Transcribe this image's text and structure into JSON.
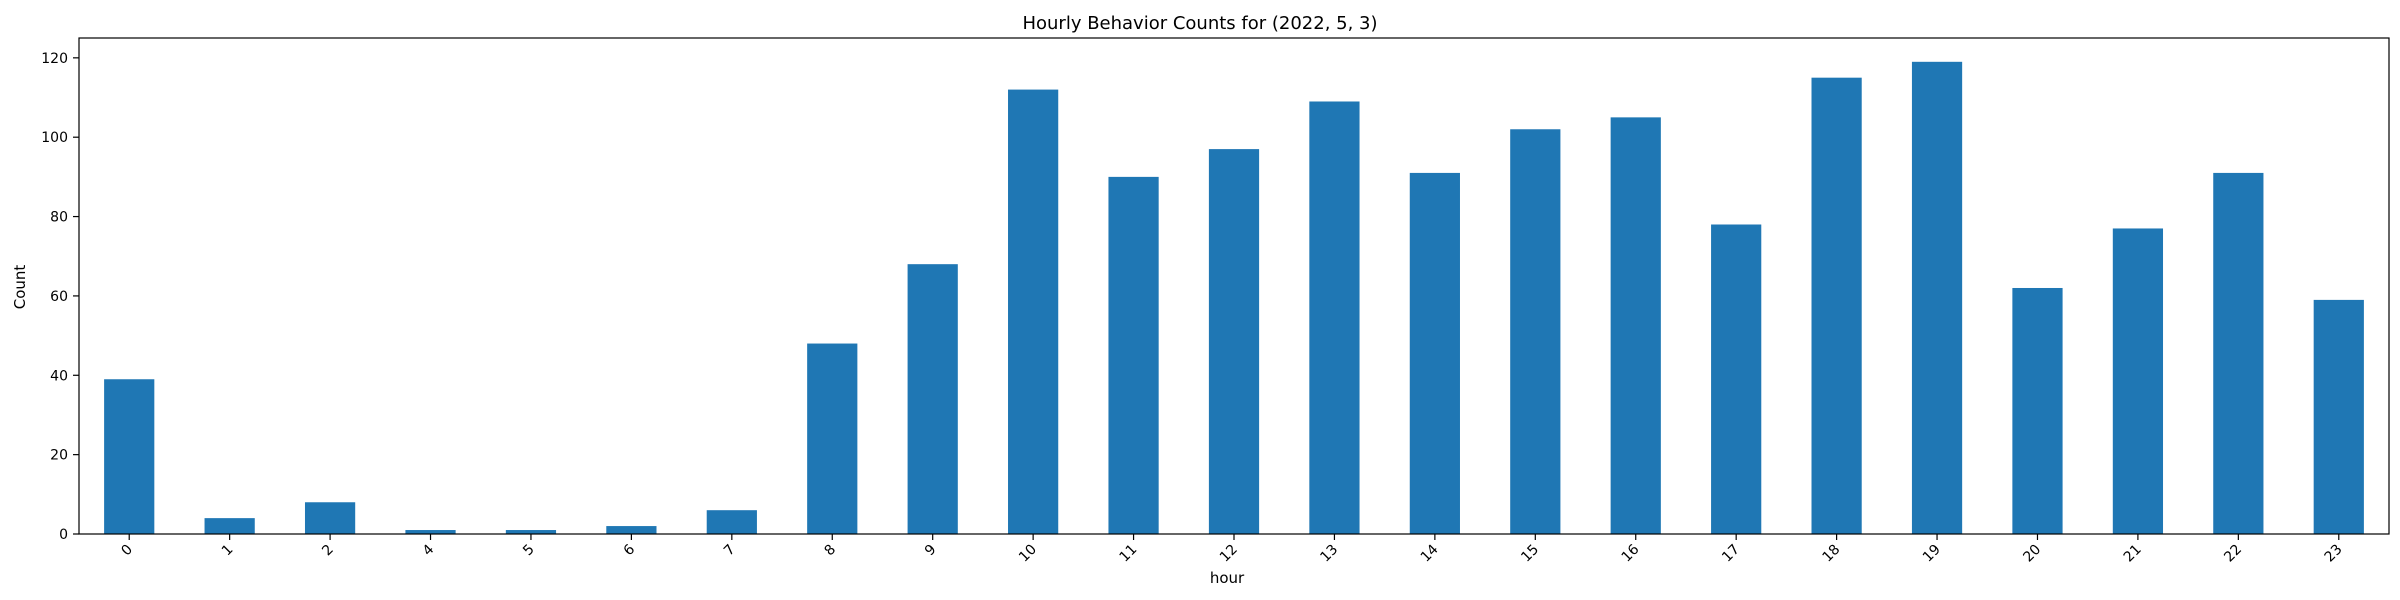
{
  "chart_data": {
    "type": "bar",
    "title": "Hourly Behavior Counts for (2022, 5, 3)",
    "xlabel": "hour",
    "ylabel": "Count",
    "categories": [
      "0",
      "1",
      "2",
      "4",
      "5",
      "6",
      "7",
      "8",
      "9",
      "10",
      "11",
      "12",
      "13",
      "14",
      "15",
      "16",
      "17",
      "18",
      "19",
      "20",
      "21",
      "22",
      "23"
    ],
    "values": [
      39,
      4,
      8,
      1,
      1,
      2,
      6,
      48,
      68,
      112,
      90,
      97,
      109,
      91,
      102,
      105,
      78,
      115,
      119,
      62,
      77,
      91,
      59
    ],
    "ylim": [
      0,
      125
    ],
    "yticks": [
      0,
      20,
      40,
      60,
      80,
      100,
      120
    ],
    "ytick_labels": [
      "0",
      "20",
      "40",
      "60",
      "80",
      "100",
      "120"
    ],
    "bar_color": "#1f77b4",
    "grid": false,
    "xtick_rotation": 45
  }
}
